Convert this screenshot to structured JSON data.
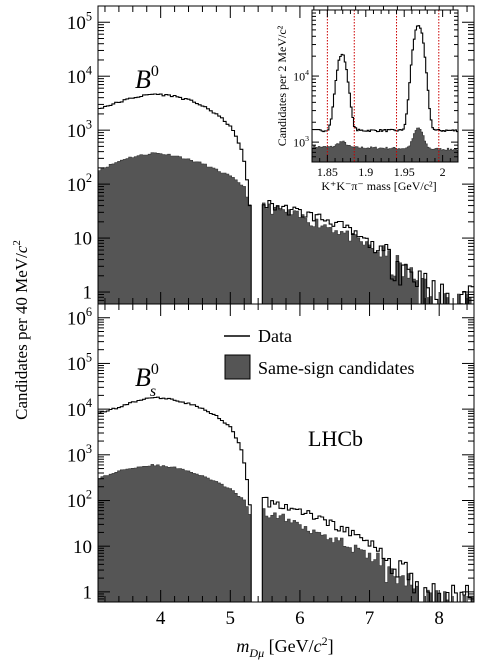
{
  "figure": {
    "ylabel_prefix": "Candidates per 40 MeV/",
    "ylabel_unit": "c",
    "ylabel_exp": "2",
    "xlabel_m": "m",
    "xlabel_sub": "Dμ",
    "xlabel_unit_open": " [GeV/",
    "xlabel_unit_c": "c",
    "xlabel_exp": "2",
    "xlabel_close": "]",
    "watermark": "LHCb"
  },
  "legend": {
    "data_label": "Data",
    "ss_label": "Same-sign candidates"
  },
  "colors": {
    "filled": "#555555",
    "line": "#000000",
    "marker": "#cc0000"
  },
  "chart_data": [
    {
      "type": "histogram",
      "id": "top",
      "panel_label_main": "B",
      "panel_label_sup": "0",
      "panel_label_sub": "",
      "x_range": [
        3.1,
        8.5
      ],
      "y_scale": "log",
      "y_range": [
        0.6,
        200000
      ],
      "y_ticks": [
        {
          "value": 1,
          "label": "1",
          "sup": ""
        },
        {
          "value": 10,
          "label": "10",
          "sup": ""
        },
        {
          "value": 100,
          "label": "10",
          "sup": "2"
        },
        {
          "value": 1000,
          "label": "10",
          "sup": "3"
        },
        {
          "value": 10000,
          "label": "10",
          "sup": "4"
        },
        {
          "value": 100000,
          "label": "10",
          "sup": "5"
        }
      ],
      "gap": [
        5.3,
        5.45
      ],
      "series": [
        {
          "name": "Data",
          "style": "line",
          "anchors": [
            [
              3.1,
              2500
            ],
            [
              3.3,
              3000
            ],
            [
              3.6,
              4000
            ],
            [
              3.9,
              4700
            ],
            [
              4.2,
              4300
            ],
            [
              4.5,
              3300
            ],
            [
              4.8,
              2000
            ],
            [
              5.0,
              1200
            ],
            [
              5.15,
              500
            ],
            [
              5.22,
              200
            ],
            [
              5.28,
              40
            ],
            [
              5.45,
              45
            ],
            [
              5.7,
              38
            ],
            [
              6.0,
              30
            ],
            [
              6.5,
              20
            ],
            [
              7.0,
              8
            ],
            [
              7.5,
              3
            ],
            [
              7.8,
              1.5
            ],
            [
              8.0,
              0.9
            ]
          ]
        },
        {
          "name": "Same-sign candidates",
          "style": "filled",
          "anchors": [
            [
              3.1,
              180
            ],
            [
              3.5,
              300
            ],
            [
              3.9,
              380
            ],
            [
              4.2,
              340
            ],
            [
              4.6,
              240
            ],
            [
              5.0,
              140
            ],
            [
              5.2,
              90
            ],
            [
              5.28,
              40
            ],
            [
              5.45,
              40
            ],
            [
              5.7,
              33
            ],
            [
              6.0,
              25
            ],
            [
              6.5,
              15
            ],
            [
              7.0,
              7
            ],
            [
              7.5,
              2.5
            ],
            [
              7.8,
              1.2
            ],
            [
              8.0,
              0.8
            ]
          ]
        }
      ]
    },
    {
      "type": "histogram",
      "id": "inset",
      "xlabel": "K⁺K⁻π⁻ mass [GeV/c²]",
      "ylabel": "Candidates per 2 MeV/c²",
      "x_range": [
        1.83,
        2.02
      ],
      "x_ticks": [
        {
          "value": 1.85,
          "label": "1.85"
        },
        {
          "value": 1.9,
          "label": "1.9"
        },
        {
          "value": 1.95,
          "label": "1.95"
        },
        {
          "value": 2.0,
          "label": "2"
        }
      ],
      "y_scale": "log",
      "y_range": [
        500,
        100000
      ],
      "y_ticks": [
        {
          "value": 1000,
          "label": "10",
          "sup": "3"
        },
        {
          "value": 10000,
          "label": "10",
          "sup": "4"
        }
      ],
      "markers": [
        1.85,
        1.885,
        1.94,
        1.995
      ],
      "series": [
        {
          "name": "Data",
          "style": "line",
          "baseline": 1500,
          "slope": 0.0,
          "peaks": [
            {
              "mu": 1.869,
              "sigma": 0.0055,
              "amp": 20000
            },
            {
              "mu": 1.9685,
              "sigma": 0.0055,
              "amp": 58000
            }
          ]
        },
        {
          "name": "Same-sign candidates",
          "style": "filled",
          "baseline": 850,
          "slope": -400,
          "peaks": [
            {
              "mu": 1.869,
              "sigma": 0.0055,
              "amp": 180
            },
            {
              "mu": 1.9685,
              "sigma": 0.0055,
              "amp": 850
            }
          ]
        }
      ]
    },
    {
      "type": "histogram",
      "id": "bottom",
      "panel_label_main": "B",
      "panel_label_sup": "0",
      "panel_label_sub": "s",
      "x_range": [
        3.1,
        8.5
      ],
      "x_ticks": [
        {
          "value": 4,
          "label": "4"
        },
        {
          "value": 5,
          "label": "5"
        },
        {
          "value": 6,
          "label": "6"
        },
        {
          "value": 7,
          "label": "7"
        },
        {
          "value": 8,
          "label": "8"
        }
      ],
      "y_scale": "log",
      "y_range": [
        0.6,
        2000000
      ],
      "y_ticks": [
        {
          "value": 1,
          "label": "1",
          "sup": ""
        },
        {
          "value": 10,
          "label": "10",
          "sup": ""
        },
        {
          "value": 100,
          "label": "10",
          "sup": "2"
        },
        {
          "value": 1000,
          "label": "10",
          "sup": "3"
        },
        {
          "value": 10000,
          "label": "10",
          "sup": "4"
        },
        {
          "value": 100000,
          "label": "10",
          "sup": "5"
        },
        {
          "value": 1000000,
          "label": "10",
          "sup": "6"
        }
      ],
      "gap": [
        5.3,
        5.45
      ],
      "series": [
        {
          "name": "Data",
          "style": "line",
          "anchors": [
            [
              3.1,
              8000
            ],
            [
              3.4,
              11000
            ],
            [
              3.7,
              16000
            ],
            [
              3.95,
              18000
            ],
            [
              4.2,
              16000
            ],
            [
              4.5,
              12000
            ],
            [
              4.8,
              7000
            ],
            [
              5.0,
              4000
            ],
            [
              5.15,
              1500
            ],
            [
              5.23,
              400
            ],
            [
              5.28,
              80
            ],
            [
              5.45,
              100
            ],
            [
              5.6,
              90
            ],
            [
              6.0,
              60
            ],
            [
              6.5,
              30
            ],
            [
              7.0,
              12
            ],
            [
              7.5,
              3
            ],
            [
              7.8,
              1.5
            ],
            [
              8.0,
              0.9
            ]
          ]
        },
        {
          "name": "Same-sign candidates",
          "style": "filled",
          "anchors": [
            [
              3.1,
              300
            ],
            [
              3.5,
              500
            ],
            [
              3.9,
              600
            ],
            [
              4.3,
              500
            ],
            [
              4.7,
              300
            ],
            [
              5.0,
              180
            ],
            [
              5.2,
              100
            ],
            [
              5.28,
              50
            ],
            [
              5.45,
              60
            ],
            [
              5.7,
              45
            ],
            [
              6.0,
              30
            ],
            [
              6.5,
              15
            ],
            [
              7.0,
              6
            ],
            [
              7.5,
              2
            ],
            [
              7.7,
              1
            ],
            [
              7.9,
              0.8
            ]
          ]
        }
      ]
    }
  ]
}
